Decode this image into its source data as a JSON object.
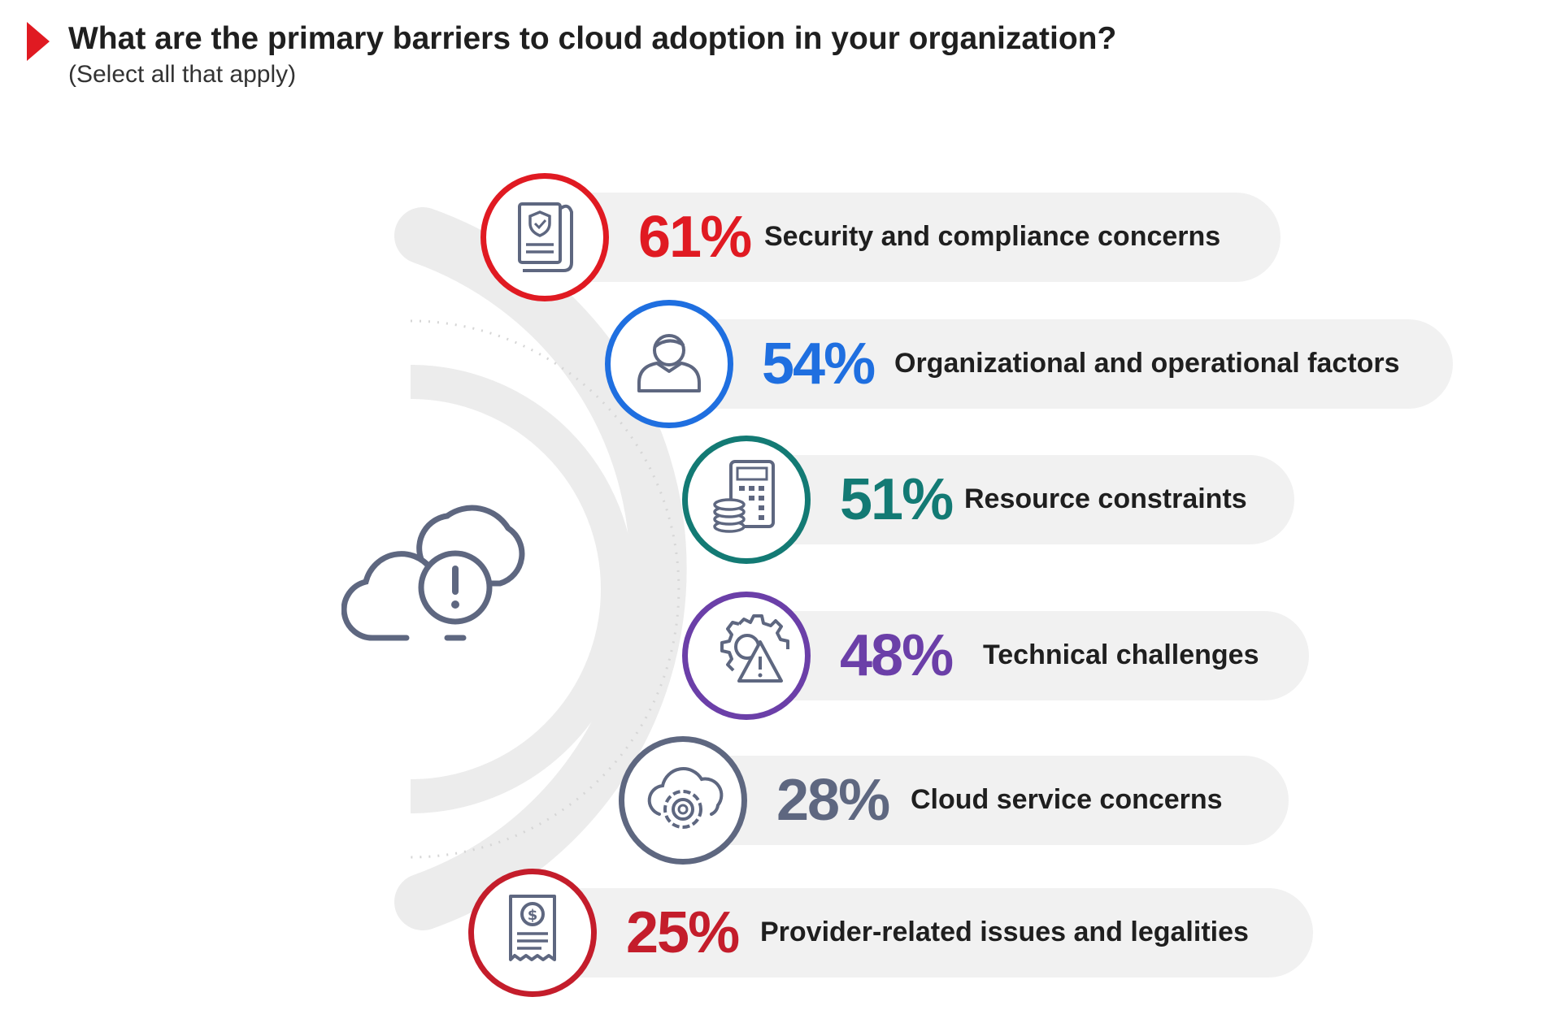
{
  "header": {
    "title": "What are the primary barriers to cloud adoption in your organization?",
    "subtitle": "(Select all that apply)",
    "marker_color": "#e01a22"
  },
  "center_icon": "cloud-alert-icon",
  "chart_data": {
    "type": "bar",
    "categories": [
      "Security and compliance concerns",
      "Organizational and operational factors",
      "Resource constraints",
      "Technical challenges",
      "Cloud service concerns",
      "Provider-related issues and legalities"
    ],
    "values": [
      61,
      54,
      51,
      48,
      28,
      25
    ],
    "labels": [
      "61%",
      "54%",
      "51%",
      "48%",
      "28%",
      "25%"
    ],
    "colors": [
      "#e01a22",
      "#1f6fe0",
      "#137a74",
      "#6b3fa8",
      "#5e6780",
      "#c41d2b"
    ],
    "icons": [
      "security-document-icon",
      "user-icon",
      "calculator-coins-icon",
      "gear-warning-icon",
      "cloud-gear-icon",
      "receipt-dollar-icon"
    ],
    "unit": "%"
  }
}
